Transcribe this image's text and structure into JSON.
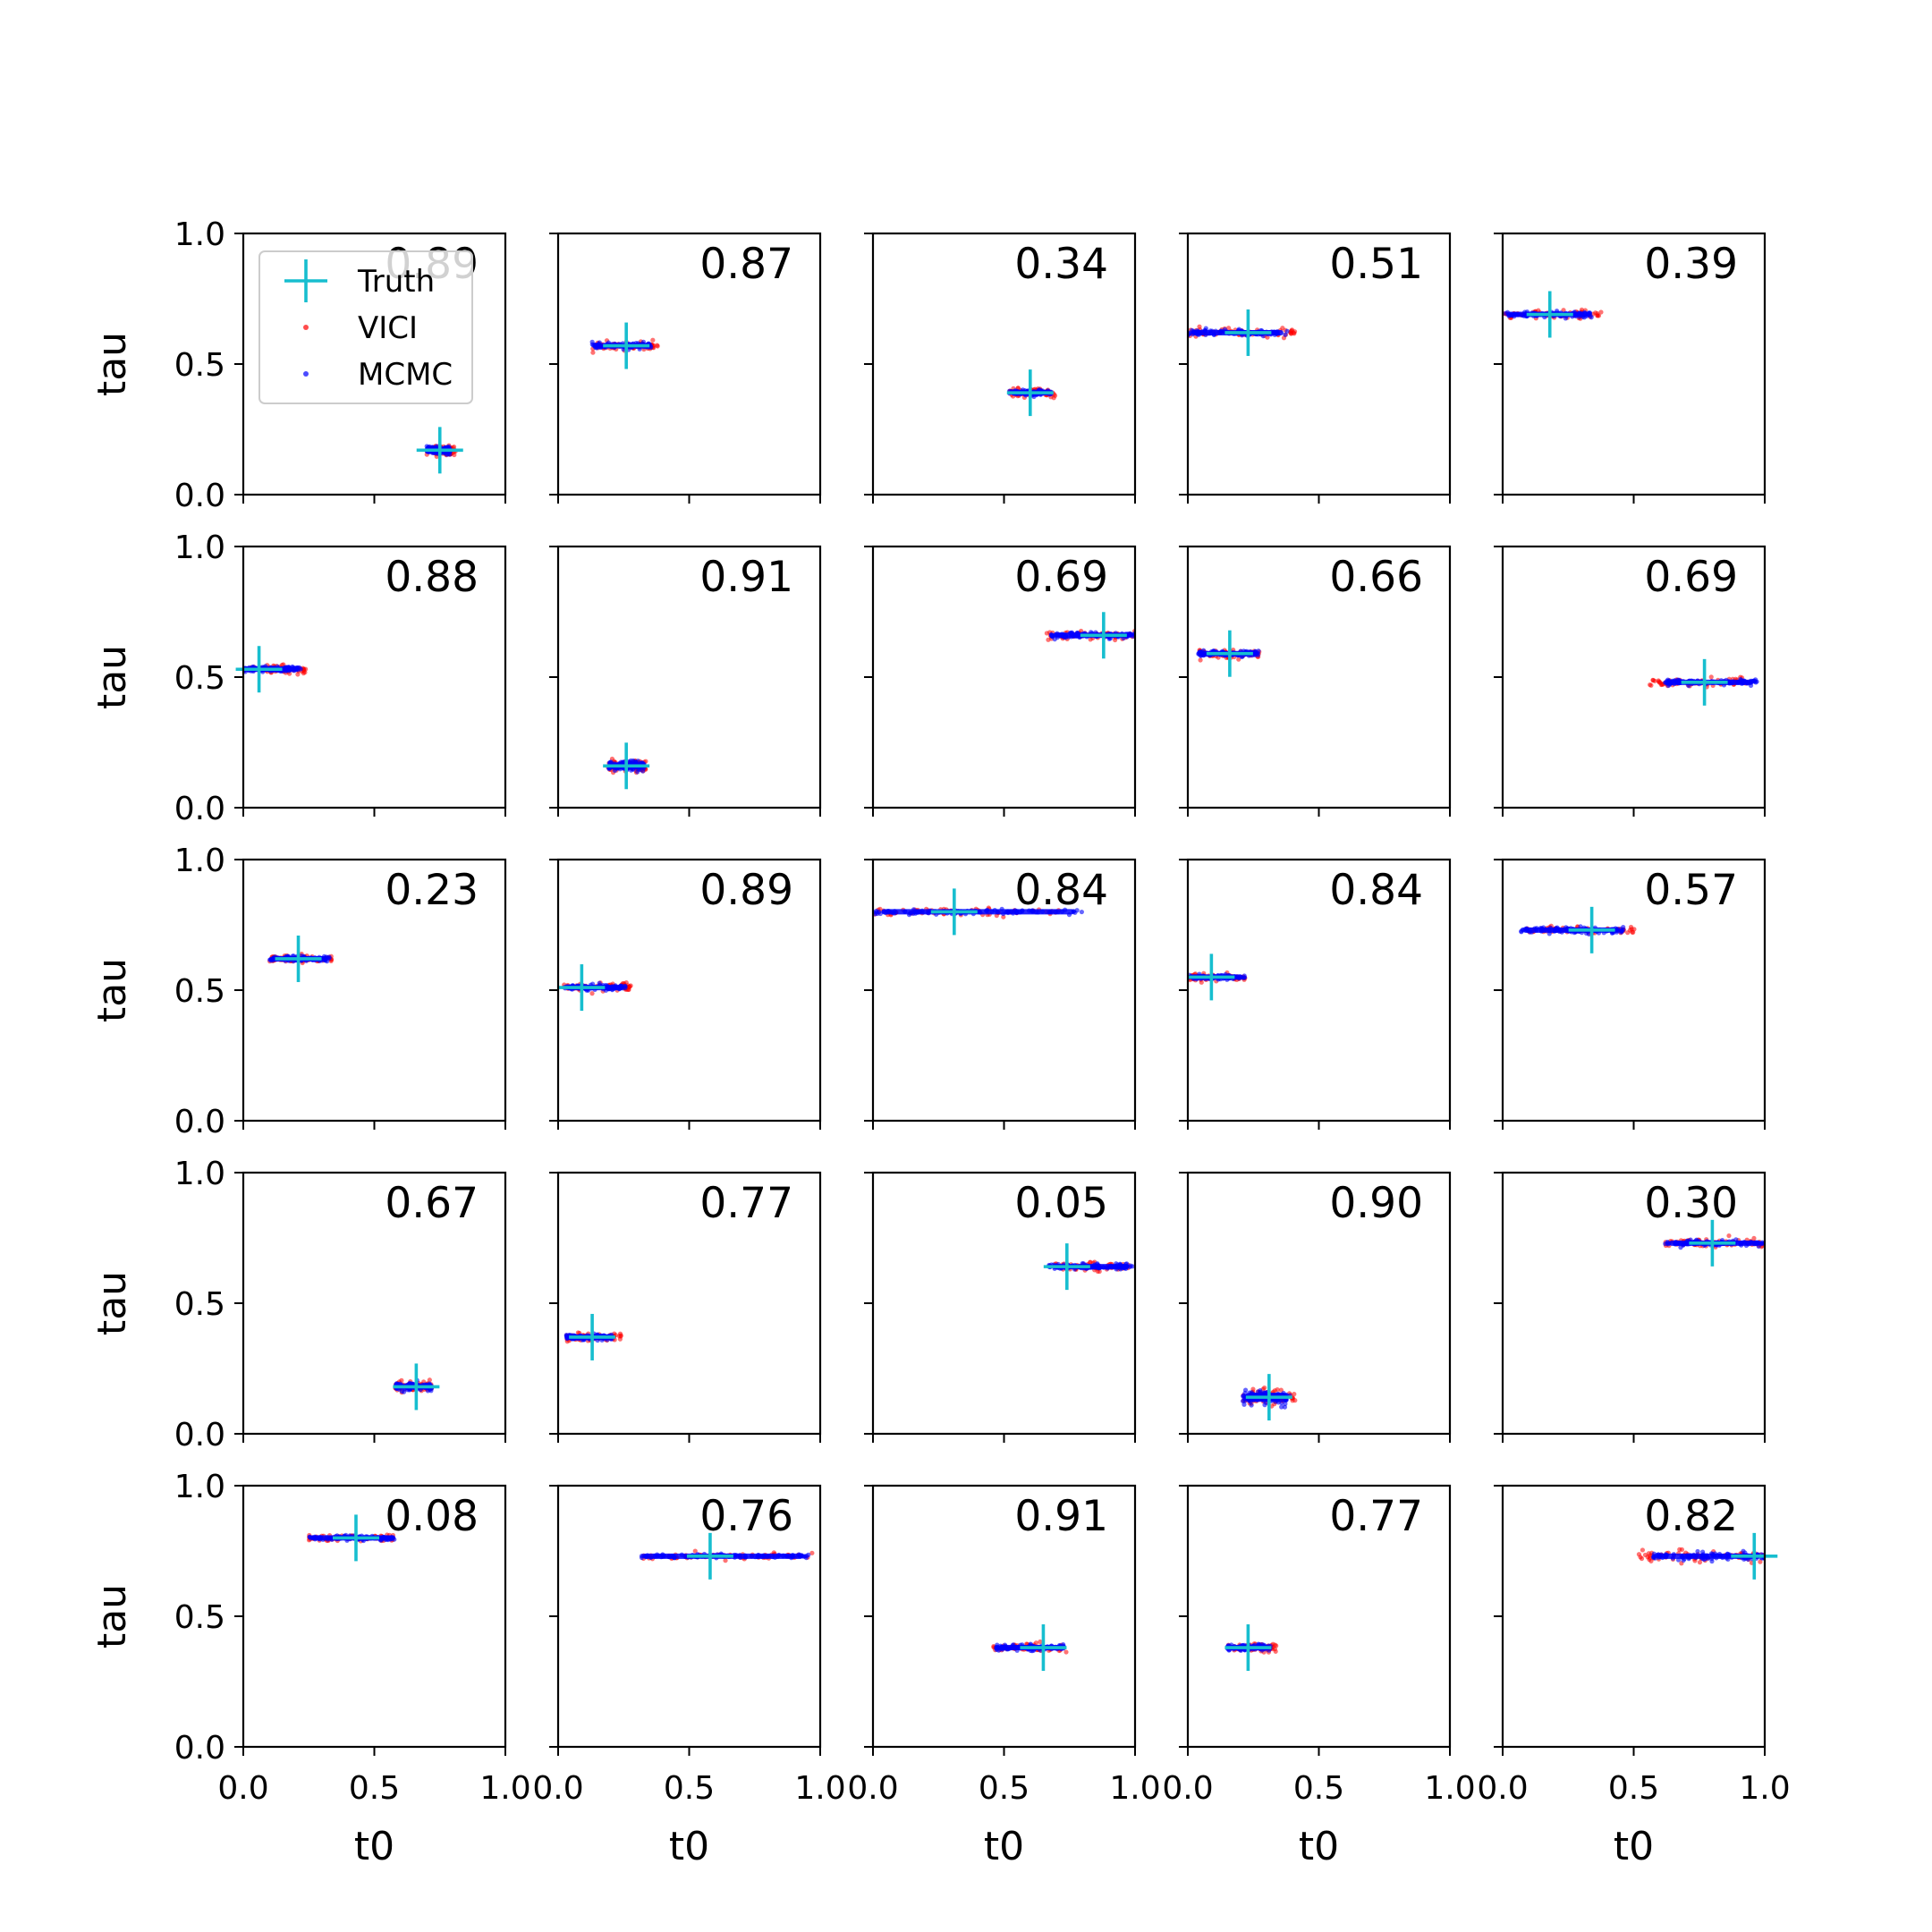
{
  "chart_data": {
    "type": "scatter",
    "layout": "5x5 grid of subplots",
    "xlabel": "t0",
    "ylabel": "tau",
    "xlim": [
      0,
      1
    ],
    "ylim": [
      0,
      1
    ],
    "x_ticks": [
      "0.0",
      "0.5",
      "1.0"
    ],
    "y_ticks": [
      "0.0",
      "0.5",
      "1.0"
    ],
    "legend": {
      "location": "upper-left of first subplot",
      "entries": [
        {
          "label": "Truth",
          "marker": "plus",
          "color": "#17becf"
        },
        {
          "label": "VICI",
          "marker": "dot",
          "color": "#ff0000"
        },
        {
          "label": "MCMC",
          "marker": "dot",
          "color": "#0000ff"
        }
      ]
    },
    "colors": {
      "truth": "#17becf",
      "vici": "#ff0000",
      "mcmc": "#0000ff"
    },
    "panels": [
      {
        "score": "0.89",
        "truth": [
          0.75,
          0.17
        ],
        "mcmc_range": [
          0.7,
          0.79
        ],
        "vici_range": [
          0.7,
          0.81
        ],
        "tau_spread": 0.02
      },
      {
        "score": "0.87",
        "truth": [
          0.26,
          0.57
        ],
        "mcmc_range": [
          0.13,
          0.36
        ],
        "vici_range": [
          0.13,
          0.38
        ],
        "tau_spread": 0.015
      },
      {
        "score": "0.34",
        "truth": [
          0.6,
          0.39
        ],
        "mcmc_range": [
          0.52,
          0.68
        ],
        "vici_range": [
          0.52,
          0.7
        ],
        "tau_spread": 0.015
      },
      {
        "score": "0.51",
        "truth": [
          0.23,
          0.62
        ],
        "mcmc_range": [
          0.0,
          0.38
        ],
        "vici_range": [
          0.0,
          0.42
        ],
        "tau_spread": 0.015
      },
      {
        "score": "0.39",
        "truth": [
          0.18,
          0.69
        ],
        "mcmc_range": [
          0.0,
          0.34
        ],
        "vici_range": [
          0.0,
          0.38
        ],
        "tau_spread": 0.015
      },
      {
        "score": "0.88",
        "truth": [
          0.06,
          0.53
        ],
        "mcmc_range": [
          0.0,
          0.22
        ],
        "vici_range": [
          0.0,
          0.24
        ],
        "tau_spread": 0.015
      },
      {
        "score": "0.91",
        "truth": [
          0.26,
          0.16
        ],
        "mcmc_range": [
          0.19,
          0.33
        ],
        "vici_range": [
          0.19,
          0.34
        ],
        "tau_spread": 0.025
      },
      {
        "score": "0.69",
        "truth": [
          0.88,
          0.66
        ],
        "mcmc_range": [
          0.68,
          1.0
        ],
        "vici_range": [
          0.66,
          1.0
        ],
        "tau_spread": 0.015
      },
      {
        "score": "0.66",
        "truth": [
          0.16,
          0.59
        ],
        "mcmc_range": [
          0.04,
          0.27
        ],
        "vici_range": [
          0.04,
          0.28
        ],
        "tau_spread": 0.015
      },
      {
        "score": "0.69",
        "truth": [
          0.77,
          0.48
        ],
        "mcmc_range": [
          0.62,
          0.97
        ],
        "vici_range": [
          0.56,
          0.95
        ],
        "tau_spread": 0.015
      },
      {
        "score": "0.23",
        "truth": [
          0.21,
          0.62
        ],
        "mcmc_range": [
          0.1,
          0.33
        ],
        "vici_range": [
          0.1,
          0.34
        ],
        "tau_spread": 0.015
      },
      {
        "score": "0.89",
        "truth": [
          0.09,
          0.51
        ],
        "mcmc_range": [
          0.02,
          0.26
        ],
        "vici_range": [
          0.02,
          0.28
        ],
        "tau_spread": 0.015
      },
      {
        "score": "0.84",
        "truth": [
          0.31,
          0.8
        ],
        "mcmc_range": [
          0.0,
          0.8
        ],
        "vici_range": [
          0.0,
          0.72
        ],
        "tau_spread": 0.012
      },
      {
        "score": "0.84",
        "truth": [
          0.09,
          0.55
        ],
        "mcmc_range": [
          0.0,
          0.22
        ],
        "vici_range": [
          0.0,
          0.22
        ],
        "tau_spread": 0.012
      },
      {
        "score": "0.57",
        "truth": [
          0.34,
          0.73
        ],
        "mcmc_range": [
          0.07,
          0.46
        ],
        "vici_range": [
          0.07,
          0.51
        ],
        "tau_spread": 0.015
      },
      {
        "score": "0.67",
        "truth": [
          0.66,
          0.18
        ],
        "mcmc_range": [
          0.58,
          0.72
        ],
        "vici_range": [
          0.58,
          0.72
        ],
        "tau_spread": 0.02
      },
      {
        "score": "0.77",
        "truth": [
          0.13,
          0.37
        ],
        "mcmc_range": [
          0.03,
          0.21
        ],
        "vici_range": [
          0.03,
          0.24
        ],
        "tau_spread": 0.015
      },
      {
        "score": "0.05",
        "truth": [
          0.74,
          0.64
        ],
        "mcmc_range": [
          0.67,
          0.99
        ],
        "vici_range": [
          0.67,
          0.98
        ],
        "tau_spread": 0.015
      },
      {
        "score": "0.90",
        "truth": [
          0.31,
          0.14
        ],
        "mcmc_range": [
          0.21,
          0.39
        ],
        "vici_range": [
          0.21,
          0.41
        ],
        "tau_spread": 0.035
      },
      {
        "score": "0.30",
        "truth": [
          0.8,
          0.73
        ],
        "mcmc_range": [
          0.62,
          1.0
        ],
        "vici_range": [
          0.62,
          1.0
        ],
        "tau_spread": 0.015
      },
      {
        "score": "0.08",
        "truth": [
          0.43,
          0.8
        ],
        "mcmc_range": [
          0.25,
          0.58
        ],
        "vici_range": [
          0.25,
          0.58
        ],
        "tau_spread": 0.012
      },
      {
        "score": "0.76",
        "truth": [
          0.58,
          0.73
        ],
        "mcmc_range": [
          0.3,
          0.96
        ],
        "vici_range": [
          0.32,
          0.98
        ],
        "tau_spread": 0.012
      },
      {
        "score": "0.91",
        "truth": [
          0.65,
          0.38
        ],
        "mcmc_range": [
          0.47,
          0.73
        ],
        "vici_range": [
          0.46,
          0.74
        ],
        "tau_spread": 0.015
      },
      {
        "score": "0.77",
        "truth": [
          0.23,
          0.38
        ],
        "mcmc_range": [
          0.15,
          0.32
        ],
        "vici_range": [
          0.15,
          0.34
        ],
        "tau_spread": 0.015
      },
      {
        "score": "0.82",
        "truth": [
          0.96,
          0.73
        ],
        "mcmc_range": [
          0.57,
          1.0
        ],
        "vici_range": [
          0.52,
          1.0
        ],
        "tau_spread": 0.02
      }
    ]
  }
}
